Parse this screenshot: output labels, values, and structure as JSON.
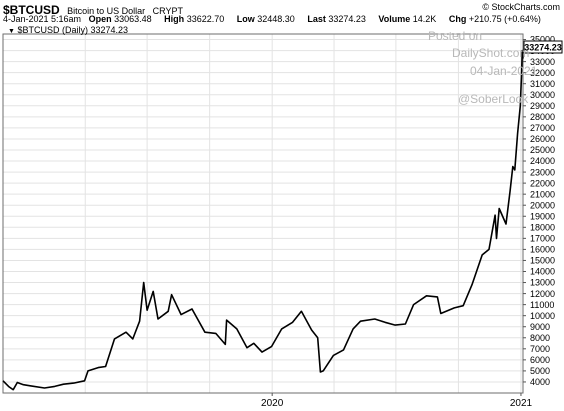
{
  "header": {
    "symbol": "$BTCUSD",
    "name": "Bitcoin to US Dollar",
    "exchange": "CRYPT",
    "copyright": "© StockCharts.com",
    "datetime": "4-Jan-2021 5:16am",
    "stats": [
      {
        "label": "Open",
        "value": "33063.48"
      },
      {
        "label": "High",
        "value": "33622.70"
      },
      {
        "label": "Low",
        "value": "32448.30"
      },
      {
        "label": "Last",
        "value": "33274.23"
      },
      {
        "label": "Volume",
        "value": "14.2K"
      },
      {
        "label": "Chg",
        "value": "+210.75 (+0.64%)"
      }
    ],
    "legend_marker": "▼",
    "legend_text": "$BTCUSD (Daily) 33274.23"
  },
  "watermark": {
    "line1": "Posted on",
    "line2": "DailyShot.com",
    "line3": "04-Jan-2021",
    "line4": "@SoberLook"
  },
  "chart_data": {
    "type": "line",
    "title": "$BTCUSD (Daily) 33274.23",
    "ylim": [
      3000,
      35500
    ],
    "xlim": [
      "2018-12-01",
      "2021-01-04"
    ],
    "y_ticks": [
      4000,
      5000,
      6000,
      7000,
      8000,
      9000,
      10000,
      11000,
      12000,
      13000,
      14000,
      15000,
      16000,
      17000,
      18000,
      19000,
      20000,
      21000,
      22000,
      23000,
      24000,
      25000,
      26000,
      27000,
      28000,
      29000,
      30000,
      31000,
      32000,
      33000,
      34000,
      35000
    ],
    "x_ticks": [
      {
        "date": "2020-01-01",
        "label": "2020"
      },
      {
        "date": "2021-01-01",
        "label": "2021"
      }
    ],
    "vertical_gridlines": [
      "2019-04-01",
      "2019-07-01",
      "2019-10-01",
      "2020-01-01",
      "2020-04-01",
      "2020-07-01",
      "2020-10-01",
      "2021-01-01"
    ],
    "last_value_label": "33274.23",
    "series": [
      {
        "color": "#000000",
        "points": [
          [
            "2018-12-01",
            4100
          ],
          [
            "2018-12-10",
            3550
          ],
          [
            "2018-12-16",
            3300
          ],
          [
            "2018-12-22",
            3950
          ],
          [
            "2018-12-31",
            3750
          ],
          [
            "2019-01-10",
            3650
          ],
          [
            "2019-01-31",
            3450
          ],
          [
            "2019-02-15",
            3600
          ],
          [
            "2019-02-28",
            3800
          ],
          [
            "2019-03-15",
            3900
          ],
          [
            "2019-03-31",
            4100
          ],
          [
            "2019-04-05",
            5000
          ],
          [
            "2019-04-20",
            5300
          ],
          [
            "2019-05-01",
            5400
          ],
          [
            "2019-05-14",
            7900
          ],
          [
            "2019-05-31",
            8500
          ],
          [
            "2019-06-10",
            7900
          ],
          [
            "2019-06-20",
            9500
          ],
          [
            "2019-06-26",
            13000
          ],
          [
            "2019-07-01",
            10500
          ],
          [
            "2019-07-10",
            12200
          ],
          [
            "2019-07-17",
            9700
          ],
          [
            "2019-08-01",
            10400
          ],
          [
            "2019-08-06",
            11900
          ],
          [
            "2019-08-20",
            10100
          ],
          [
            "2019-09-05",
            10600
          ],
          [
            "2019-09-24",
            8500
          ],
          [
            "2019-10-10",
            8400
          ],
          [
            "2019-10-24",
            7400
          ],
          [
            "2019-10-26",
            9600
          ],
          [
            "2019-11-10",
            8800
          ],
          [
            "2019-11-25",
            7100
          ],
          [
            "2019-12-05",
            7500
          ],
          [
            "2019-12-17",
            6700
          ],
          [
            "2019-12-31",
            7200
          ],
          [
            "2020-01-15",
            8800
          ],
          [
            "2020-01-31",
            9400
          ],
          [
            "2020-02-13",
            10400
          ],
          [
            "2020-02-28",
            8700
          ],
          [
            "2020-03-08",
            8000
          ],
          [
            "2020-03-12",
            4900
          ],
          [
            "2020-03-16",
            5000
          ],
          [
            "2020-03-31",
            6400
          ],
          [
            "2020-04-15",
            6900
          ],
          [
            "2020-04-29",
            8800
          ],
          [
            "2020-05-10",
            9500
          ],
          [
            "2020-05-31",
            9700
          ],
          [
            "2020-06-15",
            9400
          ],
          [
            "2020-06-30",
            9150
          ],
          [
            "2020-07-15",
            9250
          ],
          [
            "2020-07-27",
            11000
          ],
          [
            "2020-08-15",
            11800
          ],
          [
            "2020-08-31",
            11700
          ],
          [
            "2020-09-05",
            10200
          ],
          [
            "2020-09-25",
            10700
          ],
          [
            "2020-10-08",
            10900
          ],
          [
            "2020-10-21",
            12800
          ],
          [
            "2020-11-05",
            15500
          ],
          [
            "2020-11-15",
            16000
          ],
          [
            "2020-11-24",
            19100
          ],
          [
            "2020-11-26",
            17000
          ],
          [
            "2020-11-30",
            19700
          ],
          [
            "2020-12-10",
            18300
          ],
          [
            "2020-12-16",
            21300
          ],
          [
            "2020-12-20",
            23500
          ],
          [
            "2020-12-23",
            23200
          ],
          [
            "2020-12-27",
            26500
          ],
          [
            "2020-12-31",
            29000
          ],
          [
            "2021-01-02",
            32000
          ],
          [
            "2021-01-03",
            34000
          ],
          [
            "2021-01-04",
            33274
          ]
        ]
      }
    ]
  }
}
